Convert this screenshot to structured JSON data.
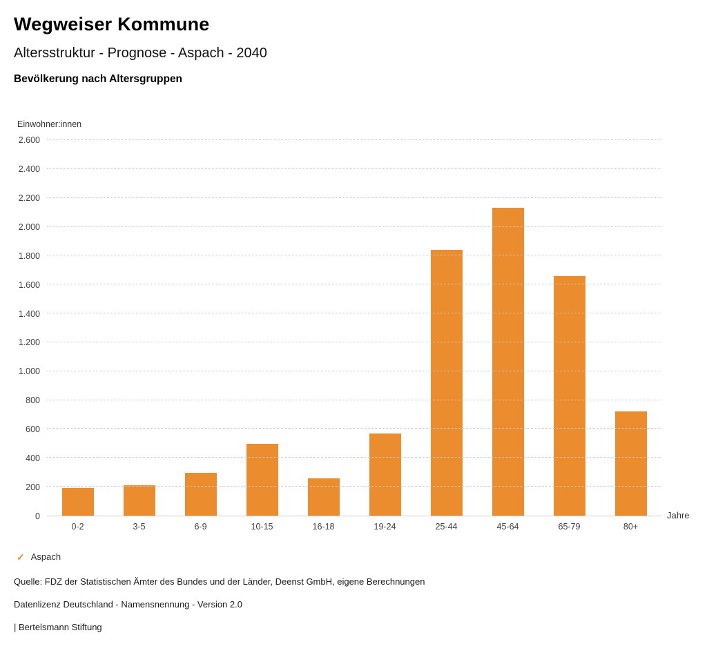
{
  "header": {
    "title": "Wegweiser Kommune",
    "subtitle": "Altersstruktur - Prognose - Aspach - 2040",
    "section_title": "Bevölkerung nach Altersgruppen"
  },
  "chart_data": {
    "type": "bar",
    "title": "Bevölkerung nach Altersgruppen",
    "ylabel": "Einwohner:innen",
    "xlabel": "Jahre",
    "categories": [
      "0-2",
      "3-5",
      "6-9",
      "10-15",
      "16-18",
      "19-24",
      "25-44",
      "45-64",
      "65-79",
      "80+"
    ],
    "series": [
      {
        "name": "Aspach",
        "values": [
          190,
          210,
          295,
          495,
          260,
          570,
          1840,
          2130,
          1660,
          720
        ]
      }
    ],
    "values": [
      190,
      210,
      295,
      495,
      260,
      570,
      1840,
      2130,
      1660,
      720
    ],
    "ylim": [
      0,
      2600
    ],
    "ytick_step": 200,
    "ytick_labels": [
      "0",
      "200",
      "400",
      "600",
      "800",
      "1.000",
      "1.200",
      "1.400",
      "1.600",
      "1.800",
      "2.000",
      "2.200",
      "2.400",
      "2.600"
    ],
    "bar_color": "#EB8C2E",
    "grid": true,
    "legend_position": "bottom-left"
  },
  "legend": {
    "check_icon": "✓",
    "items": [
      {
        "label": "Aspach",
        "color": "#EB8C2E"
      }
    ]
  },
  "footer": {
    "source": "Quelle: FDZ der Statistischen Ämter des Bundes und der Länder, Deenst GmbH, eigene Berechnungen",
    "license": "Datenlizenz Deutschland - Namensnennung - Version 2.0",
    "attribution": "| Bertelsmann Stiftung"
  }
}
